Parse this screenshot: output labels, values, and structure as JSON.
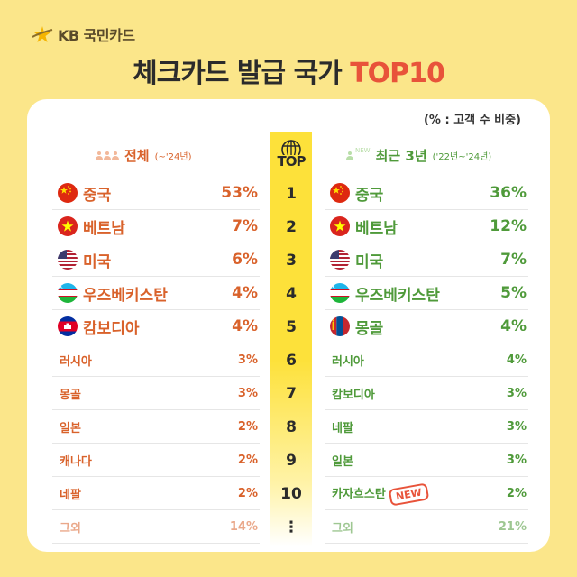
{
  "brand": {
    "name": "KB 국민카드"
  },
  "title": {
    "main": "체크카드 발급 국가 ",
    "highlight": "TOP10"
  },
  "note": "(% : 고객 수 비중)",
  "top_badge": "TOP",
  "new_sup": "NEW",
  "headers": {
    "left": {
      "title": "전체",
      "sub": "(~'24년)"
    },
    "right": {
      "title": "최근 3년",
      "sub": "('22년~'24년)"
    }
  },
  "ranks": [
    "1",
    "2",
    "3",
    "4",
    "5",
    "6",
    "7",
    "8",
    "9",
    "10",
    "⋮"
  ],
  "left": [
    {
      "name": "중국",
      "pct": "53%",
      "flag": "china"
    },
    {
      "name": "베트남",
      "pct": "7%",
      "flag": "vietnam"
    },
    {
      "name": "미국",
      "pct": "6%",
      "flag": "usa"
    },
    {
      "name": "우즈베키스탄",
      "pct": "4%",
      "flag": "uzbekistan"
    },
    {
      "name": "캄보디아",
      "pct": "4%",
      "flag": "cambodia"
    },
    {
      "name": "러시아",
      "pct": "3%"
    },
    {
      "name": "몽골",
      "pct": "3%"
    },
    {
      "name": "일본",
      "pct": "2%"
    },
    {
      "name": "캐나다",
      "pct": "2%"
    },
    {
      "name": "네팔",
      "pct": "2%"
    },
    {
      "name": "그외",
      "pct": "14%"
    }
  ],
  "right": [
    {
      "name": "중국",
      "pct": "36%",
      "flag": "china"
    },
    {
      "name": "베트남",
      "pct": "12%",
      "flag": "vietnam"
    },
    {
      "name": "미국",
      "pct": "7%",
      "flag": "usa"
    },
    {
      "name": "우즈베키스탄",
      "pct": "5%",
      "flag": "uzbekistan"
    },
    {
      "name": "몽골",
      "pct": "4%",
      "flag": "mongolia"
    },
    {
      "name": "러시아",
      "pct": "4%"
    },
    {
      "name": "캄보디아",
      "pct": "3%"
    },
    {
      "name": "네팔",
      "pct": "3%"
    },
    {
      "name": "일본",
      "pct": "3%"
    },
    {
      "name": "카자흐스탄",
      "pct": "2%",
      "badge": "NEW"
    },
    {
      "name": "그외",
      "pct": "21%"
    }
  ],
  "colors": {
    "background": "#fbe68a",
    "left_accent": "#d9622b",
    "right_accent": "#4f9a3a",
    "top_column": "#fde13a",
    "new_badge": "#e8533a"
  }
}
